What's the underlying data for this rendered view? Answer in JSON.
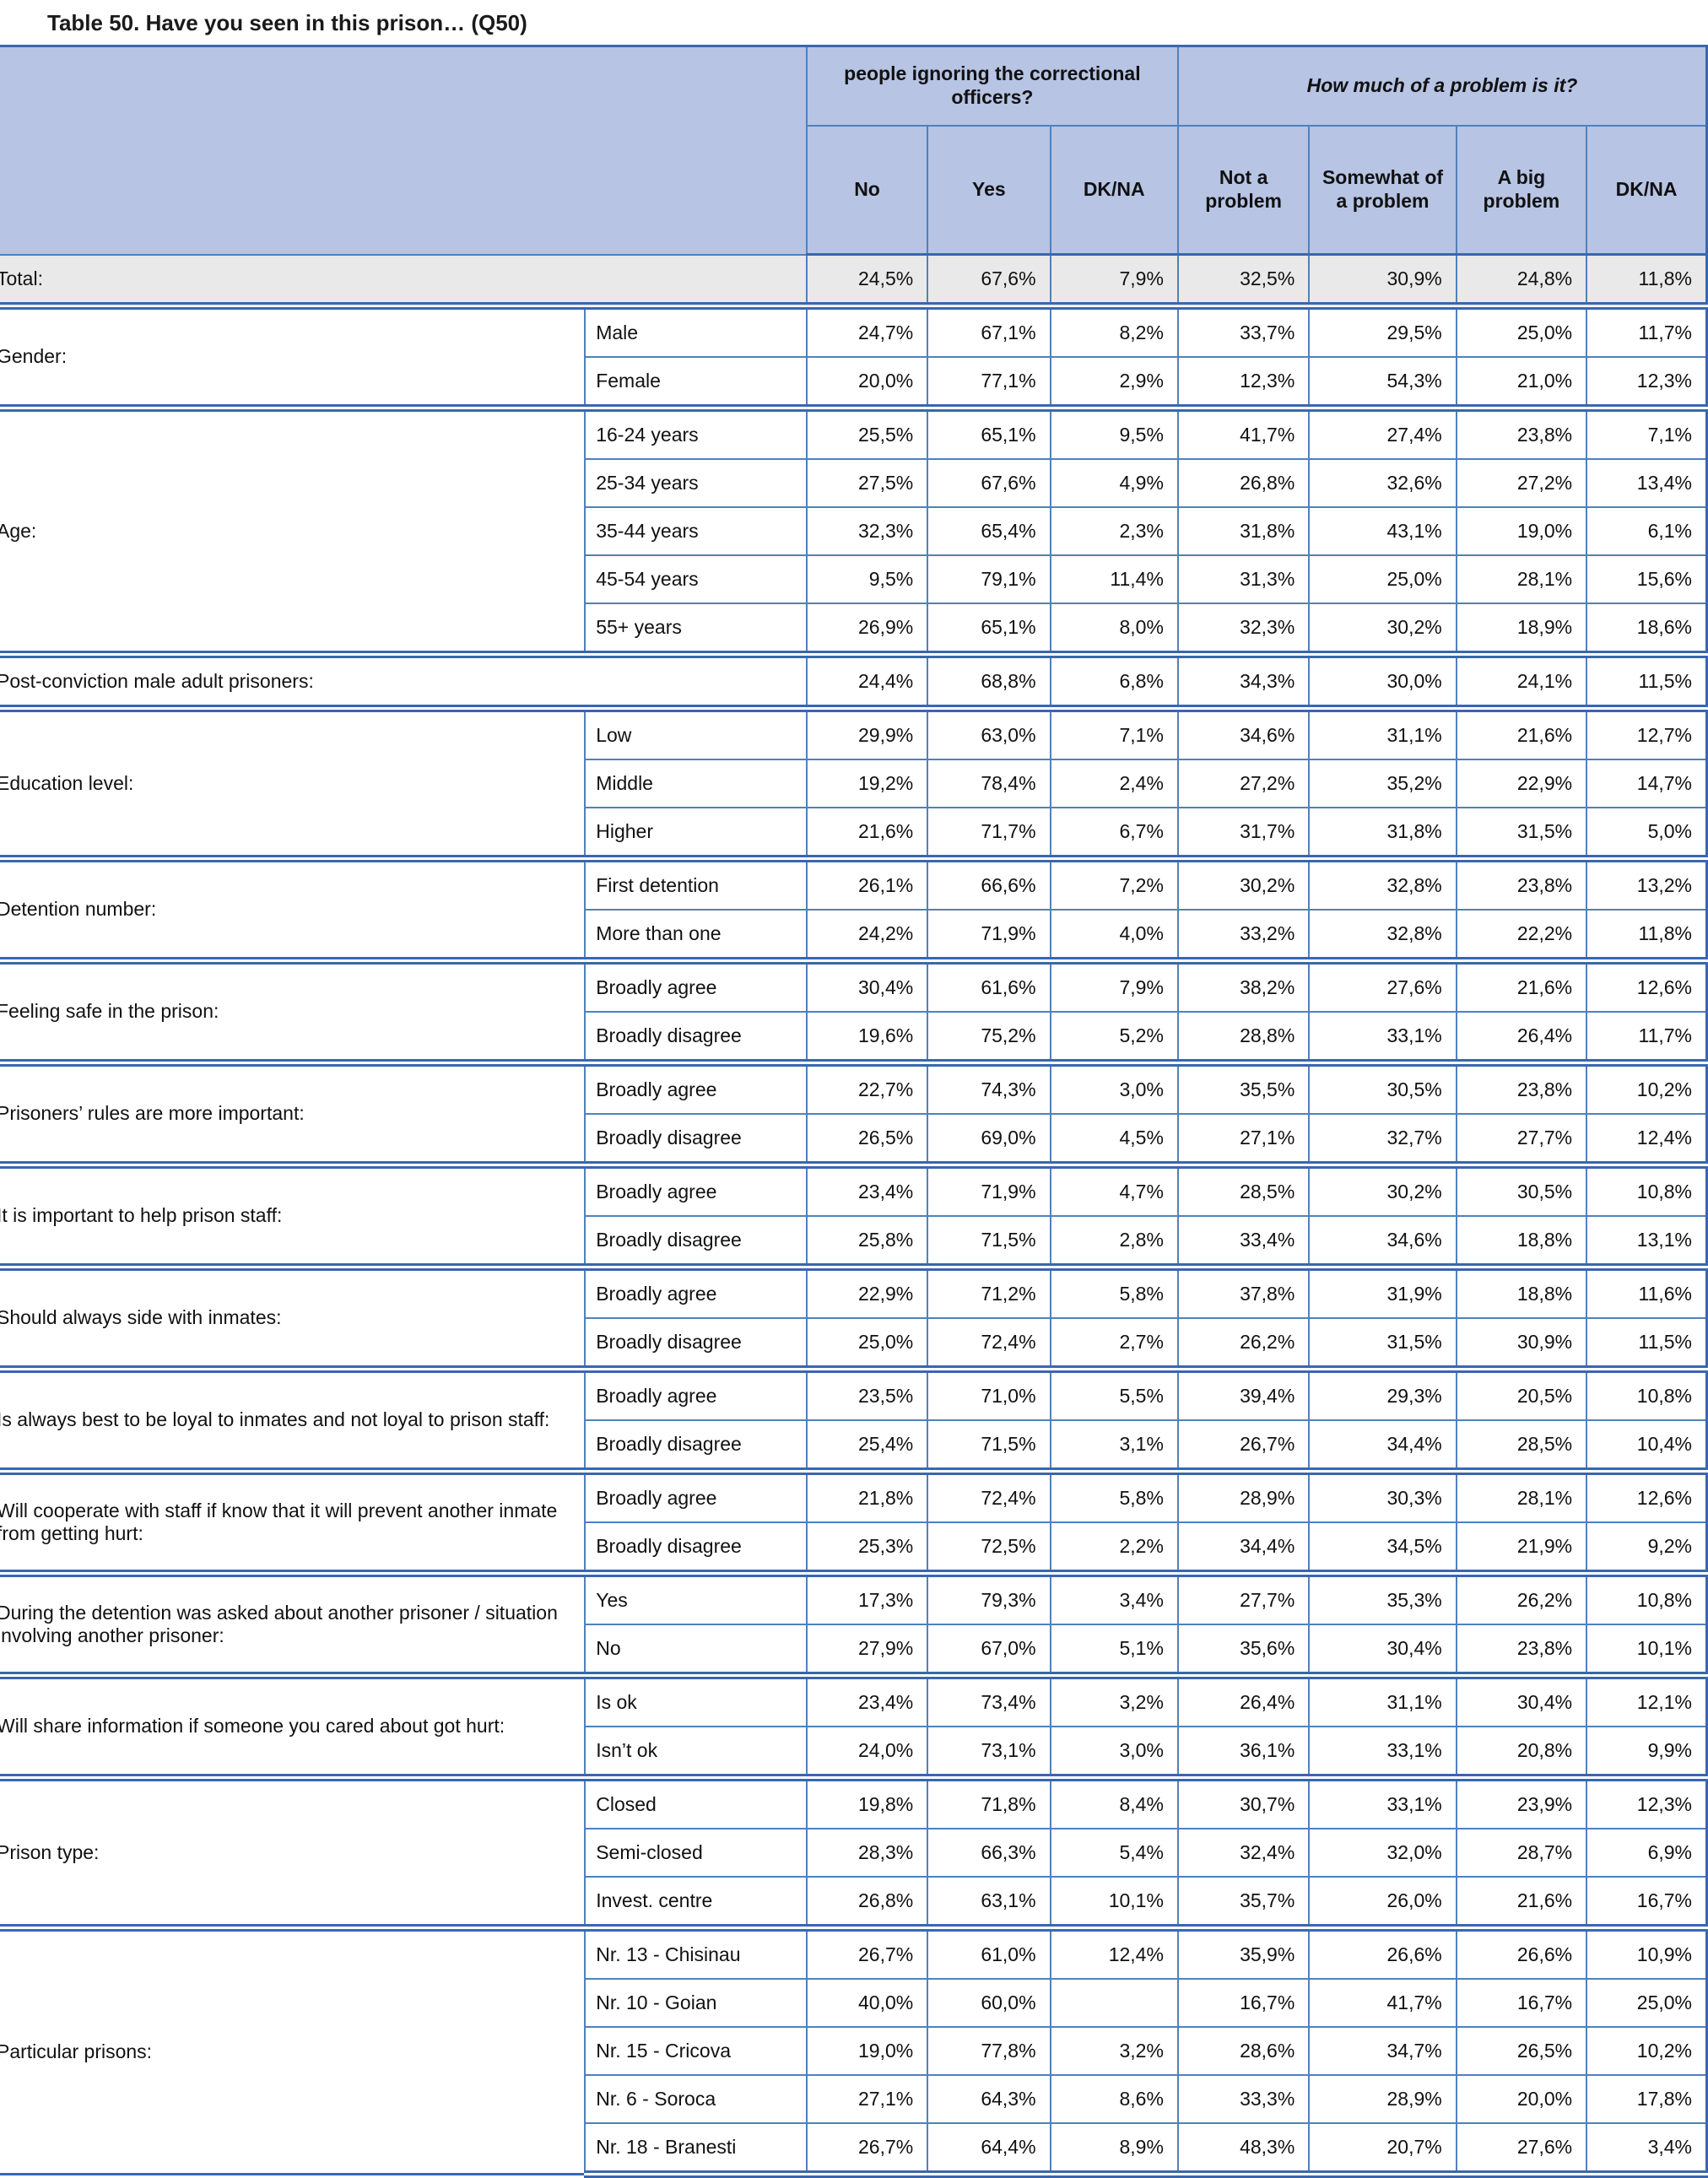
{
  "title": "Table 50. Have you seen in this prison… (Q50)",
  "header": {
    "group1": "people ignoring the correctional officers?",
    "group2": "How much of a problem is it?",
    "columns": [
      "No",
      "Yes",
      "DK/NA",
      "Not a problem",
      "Somewhat of a problem",
      "A big problem",
      "DK/NA"
    ]
  },
  "total": {
    "label": "Total:",
    "values": [
      "24,5%",
      "67,6%",
      "7,9%",
      "32,5%",
      "30,9%",
      "24,8%",
      "11,8%"
    ]
  },
  "groups": [
    {
      "label": "Gender:",
      "rows": [
        {
          "sub": "Male",
          "values": [
            "24,7%",
            "67,1%",
            "8,2%",
            "33,7%",
            "29,5%",
            "25,0%",
            "11,7%"
          ]
        },
        {
          "sub": "Female",
          "values": [
            "20,0%",
            "77,1%",
            "2,9%",
            "12,3%",
            "54,3%",
            "21,0%",
            "12,3%"
          ]
        }
      ]
    },
    {
      "label": "Age:",
      "rows": [
        {
          "sub": "16-24 years",
          "values": [
            "25,5%",
            "65,1%",
            "9,5%",
            "41,7%",
            "27,4%",
            "23,8%",
            "7,1%"
          ]
        },
        {
          "sub": "25-34 years",
          "values": [
            "27,5%",
            "67,6%",
            "4,9%",
            "26,8%",
            "32,6%",
            "27,2%",
            "13,4%"
          ]
        },
        {
          "sub": "35-44 years",
          "values": [
            "32,3%",
            "65,4%",
            "2,3%",
            "31,8%",
            "43,1%",
            "19,0%",
            "6,1%"
          ]
        },
        {
          "sub": "45-54 years",
          "values": [
            "9,5%",
            "79,1%",
            "11,4%",
            "31,3%",
            "25,0%",
            "28,1%",
            "15,6%"
          ]
        },
        {
          "sub": "55+ years",
          "values": [
            "26,9%",
            "65,1%",
            "8,0%",
            "32,3%",
            "30,2%",
            "18,9%",
            "18,6%"
          ]
        }
      ]
    },
    {
      "label": "Post-conviction male adult prisoners:",
      "rows": [
        {
          "sub": null,
          "values": [
            "24,4%",
            "68,8%",
            "6,8%",
            "34,3%",
            "30,0%",
            "24,1%",
            "11,5%"
          ]
        }
      ]
    },
    {
      "label": "Education level:",
      "rows": [
        {
          "sub": "Low",
          "values": [
            "29,9%",
            "63,0%",
            "7,1%",
            "34,6%",
            "31,1%",
            "21,6%",
            "12,7%"
          ]
        },
        {
          "sub": "Middle",
          "values": [
            "19,2%",
            "78,4%",
            "2,4%",
            "27,2%",
            "35,2%",
            "22,9%",
            "14,7%"
          ]
        },
        {
          "sub": "Higher",
          "values": [
            "21,6%",
            "71,7%",
            "6,7%",
            "31,7%",
            "31,8%",
            "31,5%",
            "5,0%"
          ]
        }
      ]
    },
    {
      "label": "Detention number:",
      "rows": [
        {
          "sub": "First detention",
          "values": [
            "26,1%",
            "66,6%",
            "7,2%",
            "30,2%",
            "32,8%",
            "23,8%",
            "13,2%"
          ]
        },
        {
          "sub": "More than one",
          "values": [
            "24,2%",
            "71,9%",
            "4,0%",
            "33,2%",
            "32,8%",
            "22,2%",
            "11,8%"
          ]
        }
      ]
    },
    {
      "label": "Feeling safe in the prison:",
      "rows": [
        {
          "sub": "Broadly agree",
          "values": [
            "30,4%",
            "61,6%",
            "7,9%",
            "38,2%",
            "27,6%",
            "21,6%",
            "12,6%"
          ]
        },
        {
          "sub": "Broadly disagree",
          "values": [
            "19,6%",
            "75,2%",
            "5,2%",
            "28,8%",
            "33,1%",
            "26,4%",
            "11,7%"
          ]
        }
      ]
    },
    {
      "label": "Prisoners’ rules are more important:",
      "rows": [
        {
          "sub": "Broadly agree",
          "values": [
            "22,7%",
            "74,3%",
            "3,0%",
            "35,5%",
            "30,5%",
            "23,8%",
            "10,2%"
          ]
        },
        {
          "sub": "Broadly disagree",
          "values": [
            "26,5%",
            "69,0%",
            "4,5%",
            "27,1%",
            "32,7%",
            "27,7%",
            "12,4%"
          ]
        }
      ]
    },
    {
      "label": "It is important to help prison staff:",
      "rows": [
        {
          "sub": "Broadly agree",
          "values": [
            "23,4%",
            "71,9%",
            "4,7%",
            "28,5%",
            "30,2%",
            "30,5%",
            "10,8%"
          ]
        },
        {
          "sub": "Broadly disagree",
          "values": [
            "25,8%",
            "71,5%",
            "2,8%",
            "33,4%",
            "34,6%",
            "18,8%",
            "13,1%"
          ]
        }
      ]
    },
    {
      "label": "Should always side with inmates:",
      "rows": [
        {
          "sub": "Broadly agree",
          "values": [
            "22,9%",
            "71,2%",
            "5,8%",
            "37,8%",
            "31,9%",
            "18,8%",
            "11,6%"
          ]
        },
        {
          "sub": "Broadly disagree",
          "values": [
            "25,0%",
            "72,4%",
            "2,7%",
            "26,2%",
            "31,5%",
            "30,9%",
            "11,5%"
          ]
        }
      ]
    },
    {
      "label": "Is always best to be loyal to inmates and not loyal to prison staff:",
      "rows": [
        {
          "sub": "Broadly agree",
          "values": [
            "23,5%",
            "71,0%",
            "5,5%",
            "39,4%",
            "29,3%",
            "20,5%",
            "10,8%"
          ]
        },
        {
          "sub": "Broadly disagree",
          "values": [
            "25,4%",
            "71,5%",
            "3,1%",
            "26,7%",
            "34,4%",
            "28,5%",
            "10,4%"
          ]
        }
      ]
    },
    {
      "label": "Will cooperate with staff if know that it will prevent another inmate from getting hurt:",
      "rows": [
        {
          "sub": "Broadly agree",
          "values": [
            "21,8%",
            "72,4%",
            "5,8%",
            "28,9%",
            "30,3%",
            "28,1%",
            "12,6%"
          ]
        },
        {
          "sub": "Broadly disagree",
          "values": [
            "25,3%",
            "72,5%",
            "2,2%",
            "34,4%",
            "34,5%",
            "21,9%",
            "9,2%"
          ]
        }
      ]
    },
    {
      "label": "During the detention was asked about another prisoner / situation involving another prisoner:",
      "rows": [
        {
          "sub": "Yes",
          "values": [
            "17,3%",
            "79,3%",
            "3,4%",
            "27,7%",
            "35,3%",
            "26,2%",
            "10,8%"
          ]
        },
        {
          "sub": "No",
          "values": [
            "27,9%",
            "67,0%",
            "5,1%",
            "35,6%",
            "30,4%",
            "23,8%",
            "10,1%"
          ]
        }
      ]
    },
    {
      "label": "Will share information if someone you cared about got hurt:",
      "rows": [
        {
          "sub": "Is ok",
          "values": [
            "23,4%",
            "73,4%",
            "3,2%",
            "26,4%",
            "31,1%",
            "30,4%",
            "12,1%"
          ]
        },
        {
          "sub": "Isn’t ok",
          "values": [
            "24,0%",
            "73,1%",
            "3,0%",
            "36,1%",
            "33,1%",
            "20,8%",
            "9,9%"
          ]
        }
      ]
    },
    {
      "label": "Prison type:",
      "rows": [
        {
          "sub": "Closed",
          "values": [
            "19,8%",
            "71,8%",
            "8,4%",
            "30,7%",
            "33,1%",
            "23,9%",
            "12,3%"
          ]
        },
        {
          "sub": "Semi-closed",
          "values": [
            "28,3%",
            "66,3%",
            "5,4%",
            "32,4%",
            "32,0%",
            "28,7%",
            "6,9%"
          ]
        },
        {
          "sub": "Invest. centre",
          "values": [
            "26,8%",
            "63,1%",
            "10,1%",
            "35,7%",
            "26,0%",
            "21,6%",
            "16,7%"
          ]
        }
      ]
    },
    {
      "label": "Particular prisons:",
      "rows": [
        {
          "sub": "Nr. 13 - Chisinau",
          "values": [
            "26,7%",
            "61,0%",
            "12,4%",
            "35,9%",
            "26,6%",
            "26,6%",
            "10,9%"
          ]
        },
        {
          "sub": "Nr. 10 - Goian",
          "values": [
            "40,0%",
            "60,0%",
            "",
            "16,7%",
            "41,7%",
            "16,7%",
            "25,0%"
          ]
        },
        {
          "sub": "Nr. 15 - Cricova",
          "values": [
            "19,0%",
            "77,8%",
            "3,2%",
            "28,6%",
            "34,7%",
            "26,5%",
            "10,2%"
          ]
        },
        {
          "sub": "Nr. 6 - Soroca",
          "values": [
            "27,1%",
            "64,3%",
            "8,6%",
            "33,3%",
            "28,9%",
            "20,0%",
            "17,8%"
          ]
        },
        {
          "sub": "Nr. 18 - Branesti",
          "values": [
            "26,7%",
            "64,4%",
            "8,9%",
            "48,3%",
            "20,7%",
            "27,6%",
            "3,4%"
          ]
        }
      ]
    }
  ]
}
